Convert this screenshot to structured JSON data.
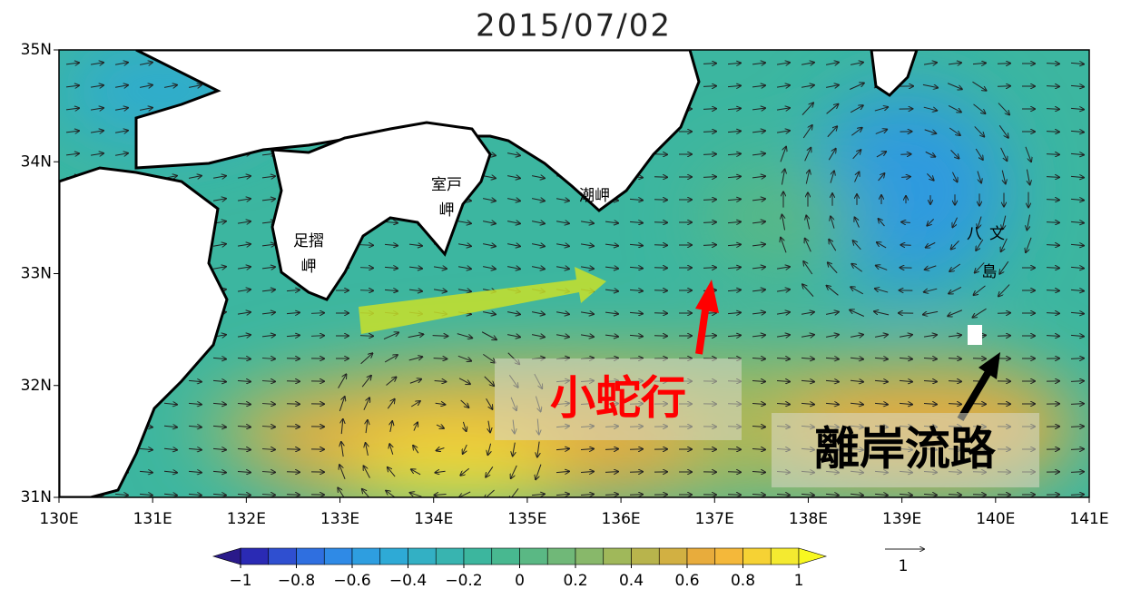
{
  "title": "2015/07/02",
  "map": {
    "xlim": [
      130,
      141
    ],
    "ylim": [
      31,
      35
    ],
    "xticks": [
      {
        "value": 130,
        "label": "130E"
      },
      {
        "value": 131,
        "label": "131E"
      },
      {
        "value": 132,
        "label": "132E"
      },
      {
        "value": 133,
        "label": "133E"
      },
      {
        "value": 134,
        "label": "134E"
      },
      {
        "value": 135,
        "label": "135E"
      },
      {
        "value": 136,
        "label": "136E"
      },
      {
        "value": 137,
        "label": "137E"
      },
      {
        "value": 138,
        "label": "138E"
      },
      {
        "value": 139,
        "label": "139E"
      },
      {
        "value": 140,
        "label": "140E"
      },
      {
        "value": 141,
        "label": "141E"
      }
    ],
    "yticks": [
      {
        "value": 31,
        "label": "31N"
      },
      {
        "value": 32,
        "label": "32N"
      },
      {
        "value": 33,
        "label": "33N"
      },
      {
        "value": 34,
        "label": "34N"
      },
      {
        "value": 35,
        "label": "35N"
      }
    ]
  },
  "places": [
    {
      "lines": [
        "足摺",
        "岬"
      ]
    },
    {
      "lines": [
        "室戸",
        "岬"
      ]
    },
    {
      "lines": [
        "潮岬"
      ]
    },
    {
      "lines": [
        "八文",
        "島"
      ]
    }
  ],
  "annotations": [
    "小蛇行",
    "離岸流路"
  ],
  "colorbar": {
    "lim": [
      -1,
      1
    ],
    "ticks": [
      {
        "value": -1,
        "label": "−1"
      },
      {
        "value": -0.8,
        "label": "−0.8"
      },
      {
        "value": -0.6,
        "label": "−0.6"
      },
      {
        "value": -0.4,
        "label": "−0.4"
      },
      {
        "value": -0.2,
        "label": "−0.2"
      },
      0,
      0.2,
      0.4,
      0.6,
      0.8,
      1
    ],
    "colors": [
      "#2a2ab4",
      "#2f4fd0",
      "#2f6fe0",
      "#2f8ae6",
      "#2e9ee0",
      "#2eaad6",
      "#33b0c4",
      "#38b4b0",
      "#3cb69e",
      "#48b890",
      "#5ab884",
      "#70b878",
      "#88b86a",
      "#a0b85a",
      "#b8b44c",
      "#d2b042",
      "#e8ac3c",
      "#f4b83a",
      "#f6d234",
      "#f4ea30"
    ]
  },
  "vector_scale": {
    "value": 1
  }
}
